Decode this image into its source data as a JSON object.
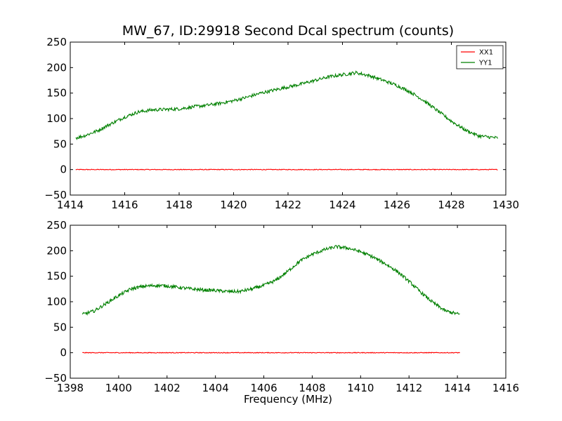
{
  "title": "MW_67, ID:29918 Second Dcal spectrum (counts)",
  "xlabel": "Frequency (MHz)",
  "colors": {
    "XX1": "#ff0000",
    "YY1": "#008000"
  },
  "chart_data": [
    {
      "type": "line",
      "xlim": [
        1414,
        1430
      ],
      "ylim": [
        -50,
        250
      ],
      "xticks": [
        1414,
        1416,
        1418,
        1420,
        1422,
        1424,
        1426,
        1428,
        1430
      ],
      "xtick_labels": [
        "1414",
        "1416",
        "1418",
        "1420",
        "1422",
        "1424",
        "1426",
        "1428",
        "1430"
      ],
      "yticks": [
        -50,
        0,
        50,
        100,
        150,
        200,
        250
      ],
      "ytick_labels": [
        "−50",
        "0",
        "50",
        "100",
        "150",
        "200",
        "250"
      ],
      "legend": {
        "placement": "top-right",
        "entries": [
          "XX1",
          "YY1"
        ]
      },
      "series": [
        {
          "name": "XX1",
          "x": [
            1414.2,
            1429.7
          ],
          "y": [
            0,
            0
          ]
        },
        {
          "name": "YY1",
          "x": [
            1414.2,
            1414.5,
            1415,
            1415.5,
            1416,
            1416.5,
            1417,
            1417.5,
            1418,
            1418.5,
            1419,
            1419.5,
            1420,
            1420.5,
            1421,
            1421.5,
            1422,
            1422.5,
            1423,
            1423.5,
            1424,
            1424.5,
            1425,
            1425.5,
            1426,
            1426.5,
            1427,
            1427.5,
            1428,
            1428.5,
            1429,
            1429.7
          ],
          "y": [
            62,
            66,
            76,
            90,
            103,
            113,
            117,
            118,
            119,
            123,
            126,
            130,
            135,
            142,
            150,
            156,
            162,
            168,
            175,
            182,
            186,
            190,
            184,
            175,
            165,
            152,
            135,
            115,
            95,
            78,
            66,
            62
          ]
        }
      ]
    },
    {
      "type": "line",
      "xlim": [
        1398,
        1416
      ],
      "ylim": [
        -50,
        250
      ],
      "xticks": [
        1398,
        1400,
        1402,
        1404,
        1406,
        1408,
        1410,
        1412,
        1414,
        1416
      ],
      "xtick_labels": [
        "1398",
        "1400",
        "1402",
        "1404",
        "1406",
        "1408",
        "1410",
        "1412",
        "1414",
        "1416"
      ],
      "yticks": [
        -50,
        0,
        50,
        100,
        150,
        200,
        250
      ],
      "ytick_labels": [
        "−50",
        "0",
        "50",
        "100",
        "150",
        "200",
        "250"
      ],
      "series": [
        {
          "name": "XX1",
          "x": [
            1398.5,
            1414.1
          ],
          "y": [
            0,
            0
          ]
        },
        {
          "name": "YY1",
          "x": [
            1398.5,
            1399,
            1399.5,
            1400,
            1400.5,
            1401,
            1401.5,
            1402,
            1402.5,
            1403,
            1403.5,
            1404,
            1404.5,
            1405,
            1405.5,
            1406,
            1406.5,
            1407,
            1407.5,
            1408,
            1408.5,
            1409,
            1409.5,
            1410,
            1410.5,
            1411,
            1411.5,
            1412,
            1412.5,
            1413,
            1413.5,
            1414.1
          ],
          "y": [
            75,
            82,
            97,
            112,
            125,
            130,
            132,
            131,
            128,
            125,
            123,
            122,
            120,
            120,
            125,
            132,
            142,
            160,
            180,
            193,
            202,
            208,
            205,
            198,
            188,
            175,
            160,
            140,
            118,
            98,
            82,
            75
          ]
        }
      ]
    }
  ]
}
